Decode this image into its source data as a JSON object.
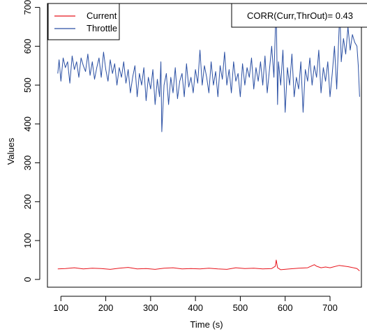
{
  "chart_data": {
    "type": "line",
    "title": "",
    "xlabel": "Time (s)",
    "ylabel": "Values",
    "xlim": [
      70,
      770
    ],
    "ylim": [
      -20,
      710
    ],
    "x_ticks": [
      100,
      200,
      300,
      400,
      500,
      600,
      700
    ],
    "y_ticks": [
      0,
      100,
      200,
      300,
      400,
      500,
      600,
      700
    ],
    "grid": false,
    "legend_position": "top-left",
    "annotation": "CORR(Curr,ThrOut)= 0.43",
    "series": [
      {
        "name": "Current",
        "color": "#e8141c",
        "x": [
          93,
          110,
          130,
          150,
          170,
          190,
          210,
          230,
          250,
          270,
          290,
          310,
          330,
          350,
          370,
          390,
          410,
          430,
          450,
          470,
          490,
          510,
          530,
          550,
          570,
          578,
          580,
          583,
          590,
          610,
          630,
          650,
          665,
          670,
          680,
          690,
          700,
          720,
          740,
          760,
          766
        ],
        "y": [
          27,
          28,
          30,
          27,
          29,
          28,
          26,
          29,
          31,
          27,
          28,
          26,
          29,
          30,
          27,
          28,
          27,
          29,
          27,
          26,
          30,
          28,
          29,
          27,
          28,
          34,
          50,
          30,
          25,
          27,
          29,
          30,
          38,
          34,
          30,
          32,
          30,
          36,
          33,
          28,
          22
        ]
      },
      {
        "name": "Throttle",
        "color": "#2a4fa3",
        "x": [
          93,
          96,
          100,
          105,
          110,
          115,
          120,
          125,
          130,
          135,
          140,
          145,
          150,
          155,
          160,
          165,
          170,
          175,
          180,
          185,
          190,
          195,
          200,
          205,
          210,
          215,
          220,
          225,
          230,
          235,
          240,
          245,
          250,
          255,
          260,
          265,
          270,
          275,
          280,
          285,
          290,
          295,
          300,
          305,
          310,
          315,
          320,
          323,
          325,
          330,
          335,
          340,
          345,
          350,
          355,
          360,
          365,
          370,
          375,
          380,
          385,
          390,
          395,
          400,
          405,
          410,
          415,
          420,
          425,
          430,
          435,
          440,
          445,
          450,
          455,
          460,
          465,
          470,
          475,
          480,
          485,
          490,
          495,
          500,
          505,
          510,
          515,
          520,
          525,
          530,
          535,
          540,
          545,
          550,
          555,
          560,
          565,
          570,
          575,
          578,
          580,
          583,
          585,
          590,
          595,
          600,
          605,
          610,
          615,
          620,
          625,
          630,
          635,
          640,
          645,
          650,
          655,
          660,
          665,
          670,
          675,
          680,
          685,
          690,
          695,
          700,
          705,
          710,
          715,
          720,
          722,
          725,
          730,
          735,
          740,
          745,
          750,
          755,
          760,
          763,
          766
        ],
        "y": [
          530,
          565,
          510,
          570,
          545,
          560,
          505,
          575,
          540,
          560,
          520,
          570,
          550,
          535,
          580,
          525,
          560,
          515,
          545,
          570,
          520,
          585,
          540,
          510,
          565,
          530,
          555,
          500,
          545,
          520,
          560,
          505,
          540,
          480,
          520,
          550,
          470,
          530,
          500,
          545,
          460,
          520,
          490,
          540,
          450,
          515,
          470,
          560,
          380,
          500,
          530,
          450,
          520,
          480,
          545,
          465,
          510,
          530,
          470,
          555,
          495,
          520,
          480,
          540,
          505,
          590,
          500,
          550,
          520,
          480,
          560,
          500,
          535,
          470,
          550,
          515,
          585,
          500,
          540,
          480,
          560,
          510,
          530,
          470,
          555,
          500,
          545,
          520,
          570,
          490,
          545,
          510,
          560,
          500,
          575,
          480,
          540,
          600,
          520,
          640,
          700,
          450,
          560,
          500,
          590,
          430,
          545,
          500,
          580,
          470,
          520,
          490,
          560,
          430,
          540,
          510,
          570,
          500,
          550,
          520,
          590,
          480,
          545,
          510,
          560,
          470,
          530,
          600,
          490,
          640,
          690,
          560,
          620,
          580,
          650,
          590,
          630,
          610,
          600,
          550,
          470
        ]
      }
    ]
  }
}
